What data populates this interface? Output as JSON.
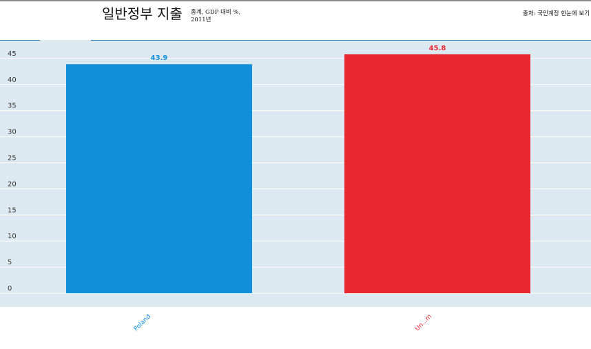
{
  "header": {
    "title": "일반정부 지출",
    "subtitle_line1": "총계, GDP 대비 %,",
    "subtitle_line2": "2011년",
    "source": "출처: 국민계정 한눈에 보기"
  },
  "chart_data": {
    "type": "bar",
    "title": "일반정부 지출",
    "subtitle": "총계, GDP 대비 %, 2011년",
    "categories": [
      "Poland",
      "Un...m"
    ],
    "values": [
      43.9,
      45.8
    ],
    "colors": [
      "#118fd9",
      "#e8282e"
    ],
    "ylim": [
      0,
      46
    ],
    "yticks": [
      0,
      5,
      10,
      15,
      20,
      25,
      30,
      35,
      40,
      45
    ],
    "grid": true,
    "xlabel": "",
    "ylabel": ""
  }
}
